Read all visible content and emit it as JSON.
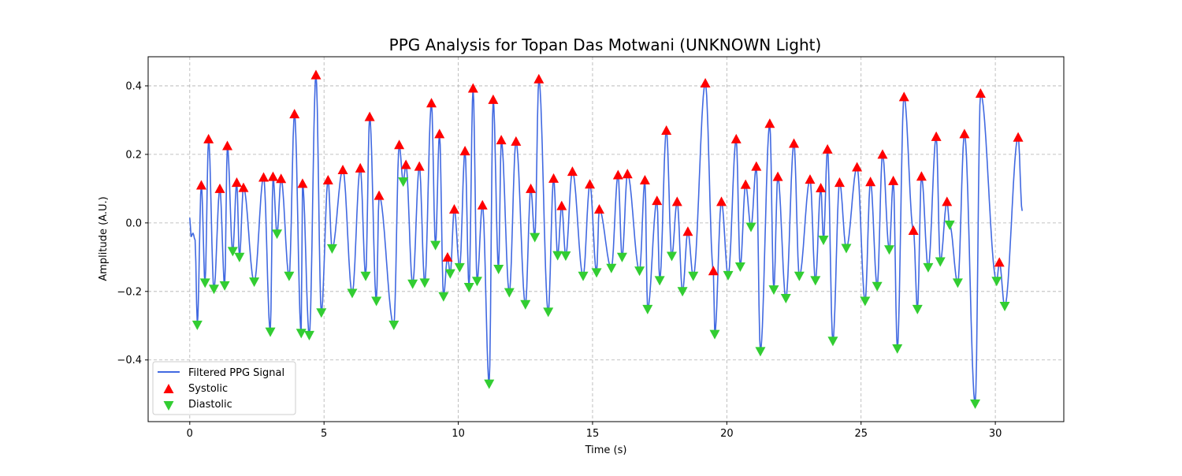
{
  "chart_data": {
    "type": "line",
    "title": "PPG Analysis for Topan Das Motwani (UNKNOWN Light)",
    "xlabel": "Time (s)",
    "ylabel": "Amplitude (A.U.)",
    "xlim": [
      -1.55,
      32.55
    ],
    "ylim": [
      -0.58,
      0.485
    ],
    "xticks": [
      0,
      5,
      10,
      15,
      20,
      25,
      30
    ],
    "yticks": [
      -0.4,
      -0.2,
      0.0,
      0.2,
      0.4
    ],
    "xtick_labels": [
      "0",
      "5",
      "10",
      "15",
      "20",
      "25",
      "30"
    ],
    "ytick_labels": [
      "−0.4",
      "−0.2",
      "0.0",
      "0.2",
      "0.4"
    ],
    "grid": true,
    "legend_position": "lower left",
    "colors": {
      "signal": "#4169e1",
      "systolic": "#ff0000",
      "diastolic": "#32cd32"
    },
    "series": [
      {
        "name": "Filtered PPG Signal",
        "type": "line"
      },
      {
        "name": "Systolic",
        "type": "scatter",
        "marker": "triangle-up",
        "points": [
          [
            0.43,
            0.11
          ],
          [
            0.7,
            0.245
          ],
          [
            1.12,
            0.1
          ],
          [
            1.4,
            0.225
          ],
          [
            1.75,
            0.118
          ],
          [
            2.0,
            0.103
          ],
          [
            2.75,
            0.133
          ],
          [
            3.1,
            0.135
          ],
          [
            3.4,
            0.129
          ],
          [
            3.9,
            0.318
          ],
          [
            4.2,
            0.115
          ],
          [
            4.7,
            0.432
          ],
          [
            5.15,
            0.125
          ],
          [
            5.7,
            0.155
          ],
          [
            6.35,
            0.16
          ],
          [
            6.7,
            0.31
          ],
          [
            7.05,
            0.08
          ],
          [
            7.8,
            0.228
          ],
          [
            8.05,
            0.17
          ],
          [
            8.55,
            0.165
          ],
          [
            9.0,
            0.35
          ],
          [
            9.3,
            0.26
          ],
          [
            9.6,
            -0.1
          ],
          [
            9.85,
            0.04
          ],
          [
            10.25,
            0.21
          ],
          [
            10.55,
            0.393
          ],
          [
            10.9,
            0.052
          ],
          [
            11.3,
            0.36
          ],
          [
            11.6,
            0.242
          ],
          [
            12.15,
            0.238
          ],
          [
            12.7,
            0.1
          ],
          [
            13.0,
            0.42
          ],
          [
            13.55,
            0.13
          ],
          [
            13.85,
            0.05
          ],
          [
            14.25,
            0.15
          ],
          [
            14.9,
            0.113
          ],
          [
            15.25,
            0.04
          ],
          [
            15.95,
            0.14
          ],
          [
            16.3,
            0.143
          ],
          [
            16.95,
            0.125
          ],
          [
            17.4,
            0.065
          ],
          [
            17.75,
            0.27
          ],
          [
            18.15,
            0.062
          ],
          [
            18.55,
            -0.025
          ],
          [
            19.2,
            0.408
          ],
          [
            19.5,
            -0.14
          ],
          [
            19.8,
            0.062
          ],
          [
            20.35,
            0.245
          ],
          [
            20.7,
            0.112
          ],
          [
            21.1,
            0.165
          ],
          [
            21.6,
            0.29
          ],
          [
            21.9,
            0.135
          ],
          [
            22.5,
            0.232
          ],
          [
            23.1,
            0.127
          ],
          [
            23.5,
            0.102
          ],
          [
            23.75,
            0.215
          ],
          [
            24.2,
            0.118
          ],
          [
            24.85,
            0.163
          ],
          [
            25.35,
            0.12
          ],
          [
            25.8,
            0.2
          ],
          [
            26.2,
            0.123
          ],
          [
            26.6,
            0.368
          ],
          [
            26.95,
            -0.022
          ],
          [
            27.25,
            0.136
          ],
          [
            27.8,
            0.252
          ],
          [
            28.2,
            0.062
          ],
          [
            28.85,
            0.26
          ],
          [
            29.45,
            0.378
          ],
          [
            30.15,
            -0.115
          ],
          [
            30.85,
            0.25
          ]
        ]
      },
      {
        "name": "Diastolic",
        "type": "scatter",
        "marker": "triangle-down",
        "points": [
          [
            0.28,
            -0.298
          ],
          [
            0.57,
            -0.175
          ],
          [
            0.9,
            -0.193
          ],
          [
            1.3,
            -0.183
          ],
          [
            1.6,
            -0.083
          ],
          [
            1.85,
            -0.1
          ],
          [
            2.4,
            -0.172
          ],
          [
            3.0,
            -0.318
          ],
          [
            3.25,
            -0.032
          ],
          [
            3.7,
            -0.155
          ],
          [
            4.15,
            -0.322
          ],
          [
            4.45,
            -0.328
          ],
          [
            4.9,
            -0.262
          ],
          [
            5.3,
            -0.075
          ],
          [
            6.05,
            -0.205
          ],
          [
            6.55,
            -0.155
          ],
          [
            6.95,
            -0.228
          ],
          [
            7.6,
            -0.298
          ],
          [
            7.95,
            0.12
          ],
          [
            8.3,
            -0.178
          ],
          [
            8.75,
            -0.175
          ],
          [
            9.15,
            -0.065
          ],
          [
            9.45,
            -0.215
          ],
          [
            9.7,
            -0.148
          ],
          [
            10.05,
            -0.13
          ],
          [
            10.4,
            -0.188
          ],
          [
            10.7,
            -0.17
          ],
          [
            11.15,
            -0.47
          ],
          [
            11.5,
            -0.135
          ],
          [
            11.9,
            -0.203
          ],
          [
            12.5,
            -0.238
          ],
          [
            12.85,
            -0.042
          ],
          [
            13.35,
            -0.26
          ],
          [
            13.7,
            -0.095
          ],
          [
            14.0,
            -0.096
          ],
          [
            14.65,
            -0.155
          ],
          [
            15.15,
            -0.145
          ],
          [
            15.7,
            -0.132
          ],
          [
            16.1,
            -0.1
          ],
          [
            16.75,
            -0.14
          ],
          [
            17.05,
            -0.252
          ],
          [
            17.5,
            -0.168
          ],
          [
            17.95,
            -0.097
          ],
          [
            18.35,
            -0.2
          ],
          [
            18.75,
            -0.155
          ],
          [
            19.55,
            -0.325
          ],
          [
            20.05,
            -0.153
          ],
          [
            20.5,
            -0.128
          ],
          [
            20.9,
            -0.012
          ],
          [
            21.25,
            -0.375
          ],
          [
            21.75,
            -0.195
          ],
          [
            22.2,
            -0.22
          ],
          [
            22.7,
            -0.155
          ],
          [
            23.3,
            -0.168
          ],
          [
            23.6,
            -0.05
          ],
          [
            23.95,
            -0.345
          ],
          [
            24.45,
            -0.074
          ],
          [
            25.15,
            -0.228
          ],
          [
            25.6,
            -0.185
          ],
          [
            26.05,
            -0.078
          ],
          [
            26.35,
            -0.367
          ],
          [
            27.1,
            -0.252
          ],
          [
            27.5,
            -0.13
          ],
          [
            27.95,
            -0.113
          ],
          [
            28.3,
            -0.006
          ],
          [
            28.6,
            -0.175
          ],
          [
            29.25,
            -0.528
          ],
          [
            30.05,
            -0.17
          ],
          [
            30.35,
            -0.243
          ]
        ]
      }
    ]
  }
}
